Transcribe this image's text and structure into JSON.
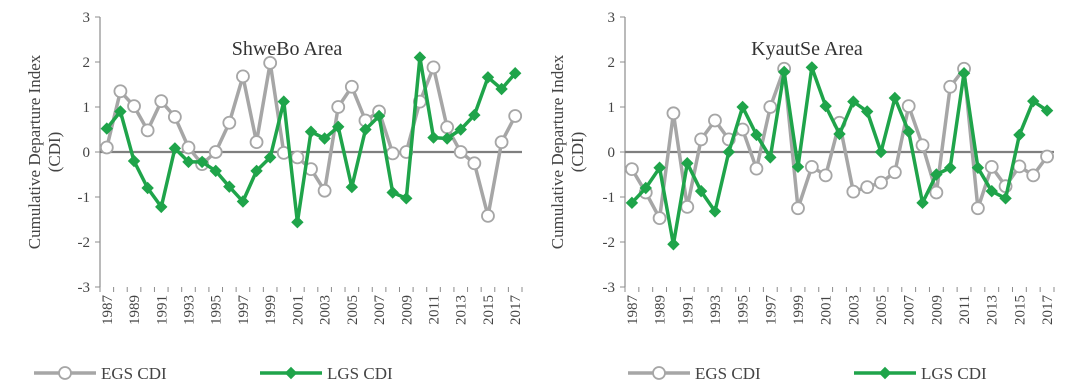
{
  "chart_data": [
    {
      "type": "line",
      "title": "ShweBo Area",
      "ylabel": "Cumulative Departure Index (CDI)",
      "xlabel": "",
      "ylim": [
        -3,
        3
      ],
      "yticks": [
        "3",
        "2",
        "1",
        "0",
        "-1",
        "-2",
        "-3"
      ],
      "x_tick_labels": [
        "1987",
        "1989",
        "1991",
        "1993",
        "1995",
        "1997",
        "1999",
        "2001",
        "2003",
        "2005",
        "2007",
        "2009",
        "2011",
        "2013",
        "2015",
        "2017"
      ],
      "x": [
        1987,
        1988,
        1989,
        1990,
        1991,
        1992,
        1993,
        1994,
        1995,
        1996,
        1997,
        1998,
        1999,
        2000,
        2001,
        2002,
        2003,
        2004,
        2005,
        2006,
        2007,
        2008,
        2009,
        2010,
        2011,
        2012,
        2013,
        2014,
        2015,
        2016,
        2017
      ],
      "grid": false,
      "legend_position": "bottom",
      "series": [
        {
          "name": "EGS CDI",
          "color": "#a6a6a6",
          "marker": "circle",
          "values": [
            0.1,
            1.35,
            1.02,
            0.48,
            1.13,
            0.78,
            0.1,
            -0.27,
            0.0,
            0.65,
            1.68,
            0.22,
            1.98,
            -0.02,
            -0.12,
            -0.38,
            -0.86,
            1.0,
            1.45,
            0.7,
            0.9,
            -0.03,
            0.0,
            1.12,
            1.88,
            0.55,
            0.0,
            -0.25,
            -1.42,
            0.22,
            0.8
          ]
        },
        {
          "name": "LGS CDI",
          "color": "#1fa44a",
          "marker": "diamond",
          "values": [
            0.52,
            0.9,
            -0.2,
            -0.8,
            -1.22,
            0.08,
            -0.22,
            -0.22,
            -0.42,
            -0.77,
            -1.1,
            -0.42,
            -0.12,
            1.12,
            -1.56,
            0.45,
            0.3,
            0.56,
            -0.78,
            0.5,
            0.8,
            -0.9,
            -1.03,
            2.1,
            0.32,
            0.3,
            0.5,
            0.82,
            1.66,
            1.4,
            1.75
          ]
        }
      ]
    },
    {
      "type": "line",
      "title": "KyautSe Area",
      "ylabel": "Cumulative Departure Index (CDI)",
      "xlabel": "",
      "ylim": [
        -3,
        3
      ],
      "yticks": [
        "3",
        "2",
        "1",
        "0",
        "-1",
        "-2",
        "-3"
      ],
      "x_tick_labels": [
        "1987",
        "1989",
        "1991",
        "1993",
        "1995",
        "1997",
        "1999",
        "2001",
        "2003",
        "2005",
        "2007",
        "2009",
        "2011",
        "2013",
        "2015",
        "2017"
      ],
      "x": [
        1987,
        1988,
        1989,
        1990,
        1991,
        1992,
        1993,
        1994,
        1995,
        1996,
        1997,
        1998,
        1999,
        2000,
        2001,
        2002,
        2003,
        2004,
        2005,
        2006,
        2007,
        2008,
        2009,
        2010,
        2011,
        2012,
        2013,
        2014,
        2015,
        2016,
        2017
      ],
      "grid": false,
      "legend_position": "bottom",
      "series": [
        {
          "name": "EGS CDI",
          "color": "#a6a6a6",
          "marker": "circle",
          "values": [
            -0.38,
            -0.9,
            -1.47,
            0.86,
            -1.22,
            0.28,
            0.7,
            0.28,
            0.5,
            -0.37,
            1.0,
            1.85,
            -1.25,
            -0.33,
            -0.52,
            0.65,
            -0.88,
            -0.78,
            -0.68,
            -0.45,
            1.02,
            0.15,
            -0.9,
            1.45,
            1.85,
            -1.25,
            -0.33,
            -0.76,
            -0.32,
            -0.52,
            -0.1
          ]
        },
        {
          "name": "LGS CDI",
          "color": "#1fa44a",
          "marker": "diamond",
          "values": [
            -1.13,
            -0.8,
            -0.35,
            -2.05,
            -0.25,
            -0.87,
            -1.32,
            0.0,
            1.0,
            0.38,
            -0.12,
            1.78,
            -0.33,
            1.88,
            1.02,
            0.4,
            1.12,
            0.9,
            0.0,
            1.2,
            0.45,
            -1.13,
            -0.5,
            -0.35,
            1.75,
            -0.35,
            -0.87,
            -1.03,
            0.38,
            1.13,
            0.92
          ]
        }
      ]
    }
  ]
}
